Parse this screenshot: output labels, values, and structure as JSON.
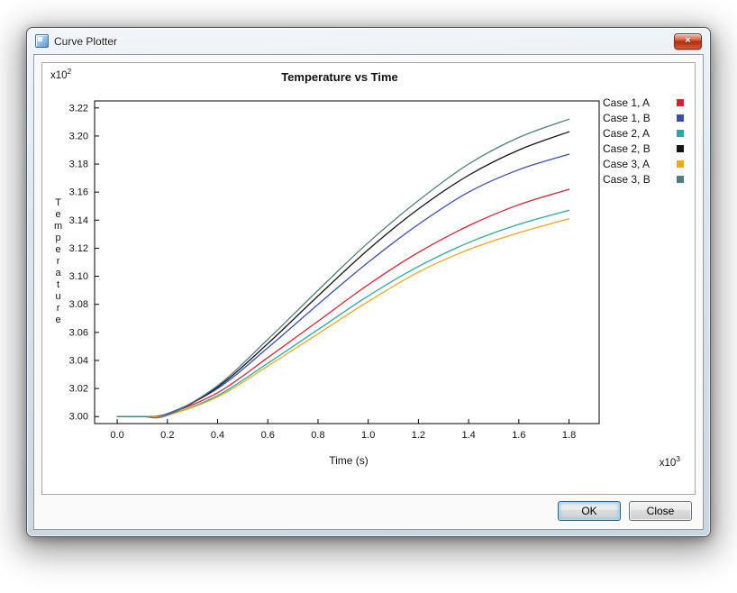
{
  "window": {
    "title": "Curve Plotter",
    "close_glyph": "×"
  },
  "buttons": {
    "ok": "OK",
    "close": "Close"
  },
  "chart_data": {
    "type": "line",
    "title": "Temperature vs Time",
    "xlabel": "Time (s)",
    "ylabel": "Temperature",
    "y_multiplier": {
      "base": "x10",
      "exp": "2"
    },
    "x_multiplier": {
      "base": "x10",
      "exp": "3"
    },
    "grid": false,
    "legend_position": "right-outside",
    "xlim": [
      -0.09,
      1.92
    ],
    "ylim": [
      2.995,
      3.225
    ],
    "x_ticks": [
      0.0,
      0.2,
      0.4,
      0.6,
      0.8,
      1.0,
      1.2,
      1.4,
      1.6,
      1.8
    ],
    "y_ticks": [
      3.0,
      3.02,
      3.04,
      3.06,
      3.08,
      3.1,
      3.12,
      3.14,
      3.16,
      3.18,
      3.2,
      3.22
    ],
    "x": [
      0,
      0.1,
      0.2,
      0.4,
      0.6,
      0.8,
      1.0,
      1.2,
      1.4,
      1.6,
      1.8
    ],
    "series": [
      {
        "name": "Case 1, A",
        "color": "#dc1e2e",
        "values": [
          3.0,
          3.0,
          3.002,
          3.017,
          3.042,
          3.068,
          3.094,
          3.117,
          3.136,
          3.151,
          3.162
        ]
      },
      {
        "name": "Case 1, B",
        "color": "#3a4fb0",
        "values": [
          3.0,
          3.0,
          3.002,
          3.02,
          3.049,
          3.08,
          3.11,
          3.137,
          3.16,
          3.176,
          3.187
        ]
      },
      {
        "name": "Case 2, A",
        "color": "#2ba8a5",
        "values": [
          3.0,
          3.0,
          3.001,
          3.015,
          3.038,
          3.062,
          3.086,
          3.107,
          3.124,
          3.137,
          3.147
        ]
      },
      {
        "name": "Case 2, B",
        "color": "#141414",
        "values": [
          3.0,
          3.0,
          3.001,
          3.021,
          3.052,
          3.086,
          3.119,
          3.148,
          3.172,
          3.19,
          3.203
        ]
      },
      {
        "name": "Case 3, A",
        "color": "#f2a71b",
        "values": [
          3.0,
          3.0,
          3.001,
          3.014,
          3.036,
          3.059,
          3.082,
          3.103,
          3.119,
          3.131,
          3.141
        ]
      },
      {
        "name": "Case 3, B",
        "color": "#4d7e82",
        "values": [
          3.0,
          3.0,
          3.001,
          3.022,
          3.055,
          3.09,
          3.124,
          3.154,
          3.18,
          3.199,
          3.212
        ]
      }
    ]
  }
}
